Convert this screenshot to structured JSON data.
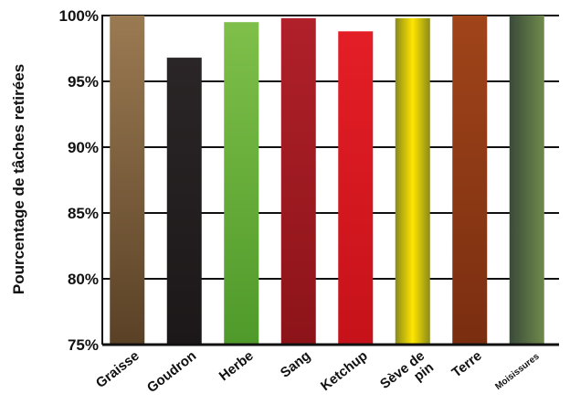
{
  "chart_data": {
    "type": "bar",
    "ylabel": "Pourcentage de tâches retirées",
    "ylim": [
      75,
      100
    ],
    "yticks": [
      "75%",
      "80%",
      "85%",
      "90%",
      "95%",
      "100%"
    ],
    "grid": true,
    "categories": [
      "Graisse",
      "Goudron",
      "Herbe",
      "Sang",
      "Ketchup",
      "Sève de pin",
      "Terre",
      "Moisissures"
    ],
    "category_lines": [
      [
        "Graisse"
      ],
      [
        "Goudron"
      ],
      [
        "Herbe"
      ],
      [
        "Sang"
      ],
      [
        "Ketchup"
      ],
      [
        "Sève de",
        "pin"
      ],
      [
        "Terre"
      ],
      [
        "Moisissures"
      ]
    ],
    "values": [
      100,
      96.8,
      99.5,
      99.8,
      98.8,
      99.8,
      100,
      100
    ],
    "colors": {
      "Graisse": [
        "#9a7a52",
        "#5a4126"
      ],
      "Goudron": [
        "#2a2526",
        "#1c1819"
      ],
      "Herbe": [
        "#7fbf4a",
        "#4f9a2a"
      ],
      "Sang": [
        "#b0202a",
        "#8c1419"
      ],
      "Ketchup": [
        "#e41e26",
        "#c6121a"
      ],
      "Sève de pin": [
        "#8a8a1a",
        "#ffe600"
      ],
      "Terre": [
        "#a0441a",
        "#7a2e10"
      ],
      "Moisissures": [
        "#3a4a3a",
        "#6f8a4a"
      ]
    }
  }
}
